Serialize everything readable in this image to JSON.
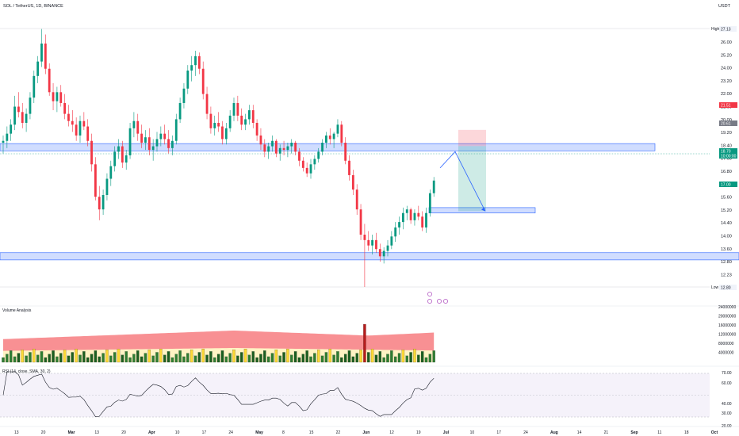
{
  "header": {
    "symbol_line": "SOL / TetherUS, 1D, BINANCE",
    "currency": "USDT"
  },
  "price_axis": {
    "ticks": [
      "26.00",
      "25.20",
      "24.00",
      "23.20",
      "22.00",
      "21.00",
      "20.00",
      "19.20",
      "18.40",
      "17.60",
      "16.80",
      "16.00",
      "15.60",
      "15.20",
      "14.40",
      "14.00",
      "13.60",
      "12.80",
      "12.23"
    ],
    "high_label": "High",
    "high_value": "27.13",
    "low_label": "Low",
    "low_value": "12.80",
    "badges": [
      {
        "value": "21.51",
        "color": "#f23645"
      },
      {
        "value": "20.61",
        "color": "#787b86"
      },
      {
        "value": "18.70",
        "color": "#089981"
      },
      {
        "value": "10:00:00",
        "color": "#089981"
      },
      {
        "value": "17.00",
        "color": "#089981"
      }
    ]
  },
  "volume_panel": {
    "title": "Volume Analysis",
    "ticks": [
      "24000000",
      "20000000",
      "16000000",
      "12000000",
      "8000000",
      "4000000"
    ]
  },
  "rsi_panel": {
    "title": "RSI (14, close, SMA, 30, 2)",
    "ticks": [
      "70.00",
      "60.00",
      "40.00",
      "30.00",
      "20.00"
    ]
  },
  "time_axis": {
    "labels": [
      "13",
      "20",
      "Mar",
      "13",
      "20",
      "Apr",
      "10",
      "17",
      "24",
      "May",
      "8",
      "15",
      "22",
      "Jun",
      "12",
      "19",
      "Jul",
      "10",
      "17",
      "24",
      "Aug",
      "14",
      "21",
      "Sep",
      "11",
      "18",
      "Oct"
    ]
  },
  "colors": {
    "up": "#089981",
    "down": "#f23645",
    "zone_fill": "#2962ff",
    "target_zone": "#089981",
    "stop_zone": "#f23645"
  },
  "chart_data": [
    {
      "type": "candlestick",
      "title": "SOL / TetherUS, 1D, BINANCE",
      "ylim": [
        12.0,
        27.5
      ],
      "price_zones": [
        {
          "from": 20.35,
          "to": 20.75
        },
        {
          "from": 14.3,
          "to": 14.7
        },
        {
          "from": 16.9,
          "to": 17.2
        }
      ],
      "trade_setup": {
        "stop": 21.51,
        "entry": 20.61,
        "target": 17.0
      },
      "projected_path": [
        19.4,
        20.3,
        17.0
      ],
      "candles": [
        [
          20.8,
          21.2,
          20.2,
          20.9
        ],
        [
          20.9,
          21.7,
          20.5,
          21.3
        ],
        [
          21.3,
          22.1,
          20.9,
          21.8
        ],
        [
          21.8,
          23.4,
          21.5,
          22.8
        ],
        [
          22.8,
          23.6,
          22.2,
          22.5
        ],
        [
          22.5,
          23.0,
          21.6,
          21.9
        ],
        [
          21.9,
          22.7,
          21.4,
          22.4
        ],
        [
          22.4,
          23.6,
          22.1,
          23.3
        ],
        [
          23.3,
          24.8,
          23.0,
          24.5
        ],
        [
          24.5,
          25.6,
          24.1,
          25.3
        ],
        [
          25.3,
          27.1,
          25.0,
          26.3
        ],
        [
          26.3,
          26.8,
          24.6,
          24.9
        ],
        [
          24.9,
          25.2,
          23.4,
          23.6
        ],
        [
          23.6,
          24.1,
          22.6,
          23.1
        ],
        [
          23.1,
          23.9,
          22.5,
          23.6
        ],
        [
          23.6,
          24.0,
          22.8,
          23.0
        ],
        [
          23.0,
          23.5,
          22.1,
          22.4
        ],
        [
          22.4,
          22.9,
          21.7,
          22.0
        ],
        [
          22.0,
          22.6,
          21.4,
          21.8
        ],
        [
          21.8,
          22.2,
          20.9,
          21.2
        ],
        [
          21.2,
          22.3,
          20.8,
          22.0
        ],
        [
          22.0,
          22.5,
          21.5,
          21.7
        ],
        [
          21.7,
          22.1,
          20.6,
          20.9
        ],
        [
          20.9,
          21.3,
          19.2,
          19.6
        ],
        [
          19.6,
          20.0,
          17.6,
          17.8
        ],
        [
          17.8,
          18.4,
          16.5,
          17.1
        ],
        [
          17.1,
          18.2,
          16.8,
          17.9
        ],
        [
          17.9,
          19.1,
          17.6,
          18.8
        ],
        [
          18.8,
          19.8,
          18.4,
          19.5
        ],
        [
          19.5,
          20.6,
          19.2,
          20.3
        ],
        [
          20.3,
          21.0,
          19.9,
          20.6
        ],
        [
          20.6,
          20.9,
          19.4,
          19.7
        ],
        [
          19.7,
          20.4,
          19.3,
          20.1
        ],
        [
          20.1,
          21.9,
          19.9,
          21.6
        ],
        [
          21.6,
          22.5,
          21.1,
          22.0
        ],
        [
          22.0,
          22.4,
          20.9,
          21.3
        ],
        [
          21.3,
          21.8,
          20.5,
          20.8
        ],
        [
          20.8,
          21.5,
          20.4,
          21.1
        ],
        [
          21.1,
          21.6,
          20.1,
          20.4
        ],
        [
          20.4,
          21.0,
          19.8,
          20.6
        ],
        [
          20.6,
          21.4,
          20.3,
          21.0
        ],
        [
          21.0,
          21.7,
          20.6,
          21.3
        ],
        [
          21.3,
          21.8,
          20.7,
          21.0
        ],
        [
          21.0,
          21.5,
          20.2,
          20.5
        ],
        [
          20.5,
          21.2,
          20.1,
          20.9
        ],
        [
          20.9,
          22.4,
          20.7,
          22.1
        ],
        [
          22.1,
          23.3,
          21.9,
          23.0
        ],
        [
          23.0,
          24.1,
          22.7,
          23.8
        ],
        [
          23.8,
          25.1,
          23.5,
          24.8
        ],
        [
          24.8,
          25.6,
          24.2,
          25.1
        ],
        [
          25.1,
          25.9,
          24.5,
          25.6
        ],
        [
          25.6,
          25.8,
          24.6,
          24.9
        ],
        [
          24.9,
          25.3,
          23.2,
          23.5
        ],
        [
          23.5,
          23.9,
          22.1,
          22.4
        ],
        [
          22.4,
          22.8,
          21.3,
          21.6
        ],
        [
          21.6,
          22.3,
          21.2,
          21.9
        ],
        [
          21.9,
          22.5,
          21.4,
          21.7
        ],
        [
          21.7,
          22.0,
          20.7,
          21.0
        ],
        [
          21.0,
          21.9,
          20.7,
          21.6
        ],
        [
          21.6,
          22.6,
          21.4,
          22.3
        ],
        [
          22.3,
          23.3,
          22.0,
          23.0
        ],
        [
          23.0,
          23.4,
          22.0,
          22.3
        ],
        [
          22.3,
          22.7,
          21.5,
          21.8
        ],
        [
          21.8,
          22.4,
          21.5,
          22.1
        ],
        [
          22.1,
          22.9,
          21.8,
          22.6
        ],
        [
          22.6,
          22.9,
          21.6,
          21.9
        ],
        [
          21.9,
          22.1,
          20.9,
          21.2
        ],
        [
          21.2,
          21.6,
          20.4,
          20.7
        ],
        [
          20.7,
          21.0,
          20.0,
          20.3
        ],
        [
          20.3,
          20.8,
          19.9,
          20.6
        ],
        [
          20.6,
          21.2,
          20.3,
          20.9
        ],
        [
          20.9,
          21.0,
          20.0,
          20.2
        ],
        [
          20.2,
          20.7,
          19.8,
          20.5
        ],
        [
          20.5,
          20.9,
          20.1,
          20.4
        ],
        [
          20.4,
          20.8,
          20.0,
          20.6
        ],
        [
          20.6,
          21.0,
          20.2,
          20.8
        ],
        [
          20.8,
          20.9,
          20.1,
          20.3
        ],
        [
          20.3,
          20.5,
          19.5,
          19.8
        ],
        [
          19.8,
          20.0,
          19.2,
          19.4
        ],
        [
          19.4,
          19.7,
          18.9,
          19.1
        ],
        [
          19.1,
          19.9,
          18.8,
          19.6
        ],
        [
          19.6,
          20.1,
          19.3,
          19.9
        ],
        [
          19.9,
          20.5,
          19.7,
          20.3
        ],
        [
          20.3,
          21.0,
          20.1,
          20.8
        ],
        [
          20.8,
          21.4,
          20.5,
          21.2
        ],
        [
          21.2,
          21.6,
          20.7,
          21.0
        ],
        [
          21.0,
          21.4,
          20.5,
          21.3
        ],
        [
          21.3,
          22.1,
          21.1,
          21.8
        ],
        [
          21.8,
          22.0,
          20.6,
          20.8
        ],
        [
          20.8,
          21.1,
          19.6,
          19.8
        ],
        [
          19.8,
          20.1,
          18.7,
          19.0
        ],
        [
          19.0,
          19.3,
          17.9,
          18.2
        ],
        [
          18.2,
          18.5,
          16.8,
          17.1
        ],
        [
          17.1,
          17.4,
          15.4,
          15.7
        ],
        [
          15.7,
          16.3,
          12.8,
          15.4
        ],
        [
          15.4,
          15.9,
          14.8,
          15.1
        ],
        [
          15.1,
          15.7,
          14.6,
          15.4
        ],
        [
          15.4,
          15.8,
          14.7,
          14.9
        ],
        [
          14.9,
          15.2,
          14.2,
          14.5
        ],
        [
          14.5,
          15.0,
          14.1,
          14.8
        ],
        [
          14.8,
          15.4,
          14.5,
          15.1
        ],
        [
          15.1,
          15.9,
          14.9,
          15.6
        ],
        [
          15.6,
          16.4,
          15.3,
          16.1
        ],
        [
          16.1,
          16.7,
          15.7,
          16.4
        ],
        [
          16.4,
          17.2,
          16.0,
          16.9
        ],
        [
          16.9,
          17.3,
          16.5,
          17.1
        ],
        [
          17.1,
          17.2,
          16.3,
          16.5
        ],
        [
          16.5,
          17.1,
          16.2,
          16.9
        ],
        [
          16.9,
          17.3,
          16.5,
          16.7
        ],
        [
          16.7,
          17.0,
          15.9,
          16.1
        ],
        [
          16.1,
          17.2,
          15.8,
          16.9
        ],
        [
          16.9,
          18.2,
          16.7,
          18.0
        ],
        [
          18.0,
          18.9,
          17.8,
          18.7
        ]
      ]
    },
    {
      "type": "bar",
      "title": "Volume Analysis",
      "ylim": [
        0,
        24000000
      ]
    },
    {
      "type": "line",
      "title": "RSI (14, close, SMA, 30, 2)",
      "ylim": [
        20,
        75
      ],
      "bands": [
        70,
        30
      ]
    }
  ]
}
